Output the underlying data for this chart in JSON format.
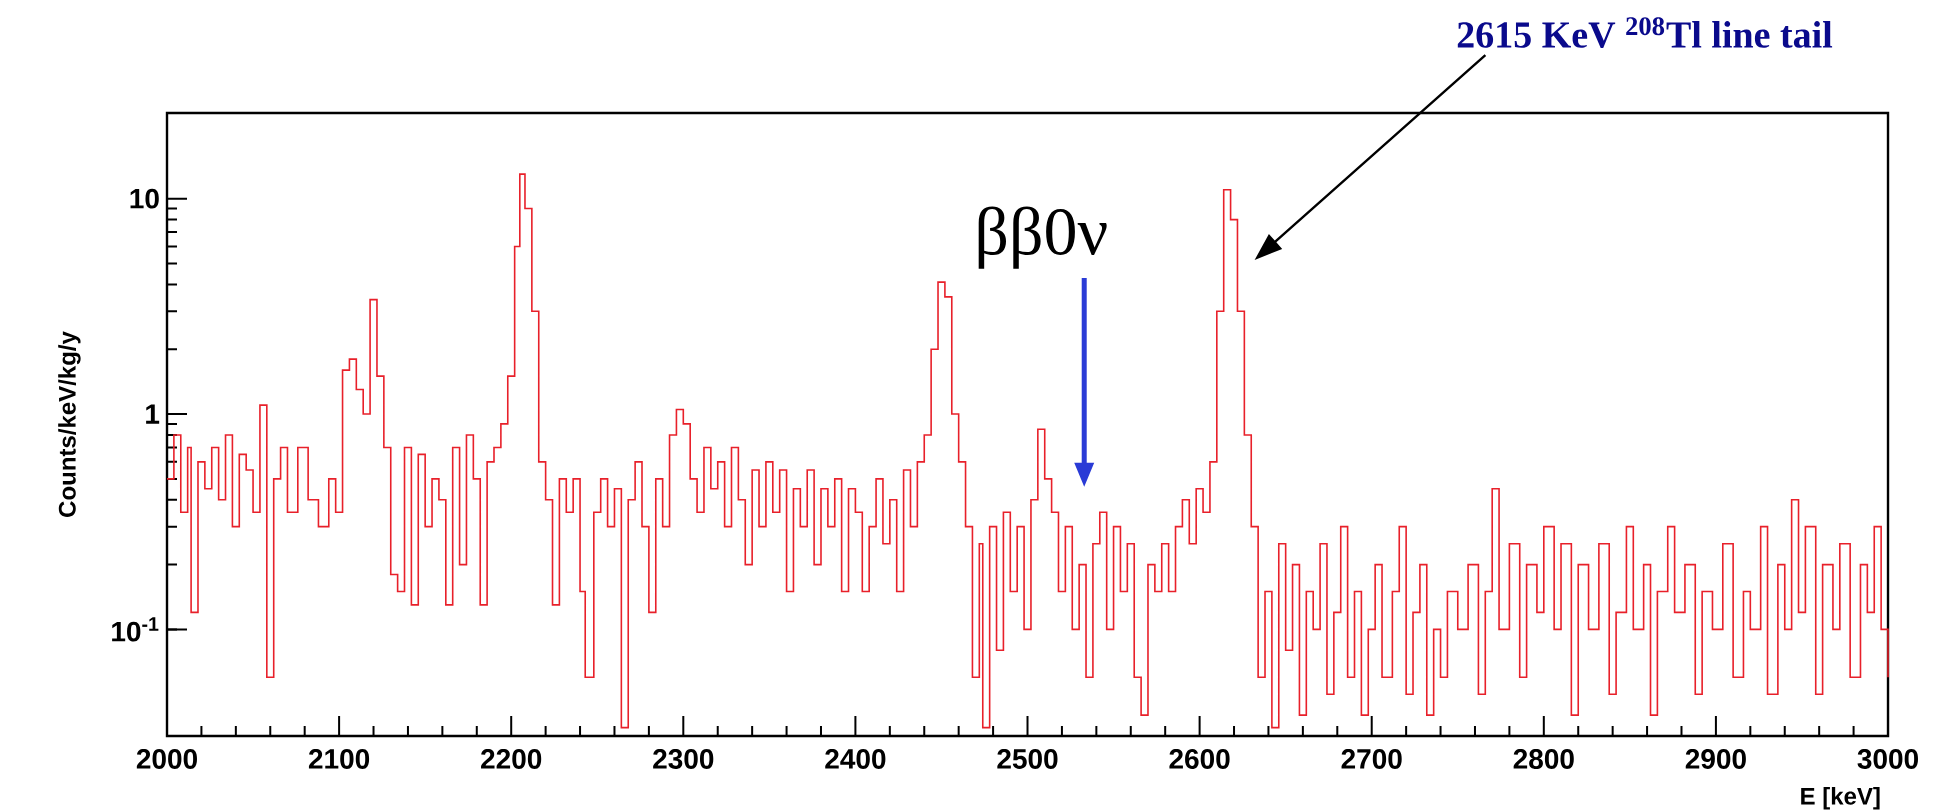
{
  "chart_data": {
    "type": "step",
    "xlabel": "E [keV]",
    "ylabel": "Counts/keV/kg/y",
    "log": true,
    "color": "#e8202a",
    "xlim": [
      2000,
      3000
    ],
    "ylim": [
      0.032,
      25
    ],
    "xticks": [
      2000,
      2100,
      2200,
      2300,
      2400,
      2500,
      2600,
      2700,
      2800,
      2900,
      3000
    ],
    "yticks": [
      {
        "value": 0.1,
        "label": "10$^{-1}$"
      },
      1,
      10
    ],
    "annotations": [
      "ββ0ν",
      "2615 KeV $^{208}$Tl line tail"
    ],
    "x": [
      2000,
      2004,
      2008,
      2012,
      2014,
      2018,
      2022,
      2026,
      2030,
      2034,
      2038,
      2042,
      2046,
      2050,
      2054,
      2058,
      2062,
      2066,
      2070,
      2076,
      2082,
      2088,
      2094,
      2098,
      2102,
      2106,
      2110,
      2114,
      2118,
      2122,
      2126,
      2130,
      2134,
      2138,
      2142,
      2146,
      2150,
      2154,
      2158,
      2162,
      2166,
      2170,
      2174,
      2178,
      2182,
      2186,
      2190,
      2194,
      2198,
      2202,
      2205,
      2208,
      2212,
      2216,
      2220,
      2224,
      2228,
      2232,
      2236,
      2240,
      2243,
      2248,
      2252,
      2256,
      2260,
      2264,
      2268,
      2272,
      2276,
      2280,
      2284,
      2288,
      2292,
      2296,
      2300,
      2304,
      2308,
      2312,
      2316,
      2320,
      2324,
      2328,
      2332,
      2336,
      2340,
      2344,
      2348,
      2352,
      2356,
      2360,
      2364,
      2368,
      2372,
      2376,
      2380,
      2384,
      2388,
      2392,
      2396,
      2400,
      2404,
      2408,
      2412,
      2416,
      2420,
      2424,
      2428,
      2432,
      2436,
      2440,
      2444,
      2448,
      2452,
      2456,
      2460,
      2464,
      2468,
      2472,
      2474,
      2478,
      2482,
      2486,
      2490,
      2494,
      2498,
      2502,
      2506,
      2510,
      2514,
      2518,
      2522,
      2526,
      2530,
      2534,
      2538,
      2542,
      2546,
      2550,
      2554,
      2558,
      2562,
      2566,
      2570,
      2574,
      2578,
      2582,
      2586,
      2590,
      2594,
      2598,
      2602,
      2606,
      2610,
      2614,
      2618,
      2622,
      2626,
      2630,
      2634,
      2638,
      2642,
      2646,
      2650,
      2654,
      2658,
      2662,
      2666,
      2670,
      2674,
      2678,
      2682,
      2686,
      2690,
      2694,
      2698,
      2702,
      2706,
      2712,
      2716,
      2720,
      2724,
      2728,
      2732,
      2736,
      2740,
      2744,
      2750,
      2756,
      2762,
      2766,
      2770,
      2774,
      2780,
      2786,
      2790,
      2796,
      2800,
      2806,
      2810,
      2816,
      2820,
      2826,
      2832,
      2838,
      2842,
      2848,
      2852,
      2858,
      2862,
      2866,
      2872,
      2876,
      2882,
      2888,
      2892,
      2898,
      2904,
      2910,
      2916,
      2920,
      2926,
      2930,
      2936,
      2940,
      2944,
      2948,
      2952,
      2958,
      2962,
      2968,
      2972,
      2978,
      2984,
      2988,
      2992,
      2996,
      3000
    ],
    "values": [
      0.5,
      0.8,
      0.35,
      0.7,
      0.12,
      0.6,
      0.45,
      0.7,
      0.4,
      0.8,
      0.3,
      0.65,
      0.55,
      0.35,
      1.1,
      0.06,
      0.5,
      0.7,
      0.35,
      0.7,
      0.4,
      0.3,
      0.5,
      0.35,
      1.6,
      1.8,
      1.3,
      1.0,
      3.4,
      1.5,
      0.7,
      0.18,
      0.15,
      0.7,
      0.13,
      0.65,
      0.3,
      0.5,
      0.4,
      0.13,
      0.7,
      0.2,
      0.8,
      0.5,
      0.13,
      0.6,
      0.7,
      0.9,
      1.5,
      6,
      13,
      9,
      3,
      0.6,
      0.4,
      0.13,
      0.5,
      0.35,
      0.5,
      0.15,
      0.06,
      0.35,
      0.5,
      0.3,
      0.45,
      0.035,
      0.4,
      0.6,
      0.3,
      0.12,
      0.5,
      0.3,
      0.8,
      1.05,
      0.9,
      0.5,
      0.35,
      0.7,
      0.45,
      0.6,
      0.3,
      0.7,
      0.4,
      0.2,
      0.55,
      0.3,
      0.6,
      0.35,
      0.55,
      0.15,
      0.45,
      0.3,
      0.55,
      0.2,
      0.45,
      0.3,
      0.5,
      0.15,
      0.45,
      0.35,
      0.15,
      0.3,
      0.5,
      0.25,
      0.4,
      0.15,
      0.55,
      0.3,
      0.6,
      0.8,
      2.0,
      4.1,
      3.5,
      1.0,
      0.6,
      0.3,
      0.06,
      0.25,
      0.035,
      0.3,
      0.08,
      0.35,
      0.15,
      0.3,
      0.1,
      0.4,
      0.85,
      0.5,
      0.35,
      0.15,
      0.3,
      0.1,
      0.2,
      0.06,
      0.25,
      0.35,
      0.1,
      0.3,
      0.15,
      0.25,
      0.06,
      0.04,
      0.2,
      0.15,
      0.25,
      0.15,
      0.3,
      0.4,
      0.25,
      0.45,
      0.35,
      0.6,
      3,
      11,
      8,
      3,
      0.8,
      0.3,
      0.06,
      0.15,
      0.035,
      0.25,
      0.08,
      0.2,
      0.04,
      0.15,
      0.1,
      0.25,
      0.05,
      0.12,
      0.3,
      0.06,
      0.15,
      0.04,
      0.1,
      0.2,
      0.06,
      0.15,
      0.3,
      0.05,
      0.12,
      0.2,
      0.04,
      0.1,
      0.06,
      0.15,
      0.1,
      0.2,
      0.05,
      0.15,
      0.45,
      0.1,
      0.25,
      0.06,
      0.2,
      0.12,
      0.3,
      0.1,
      0.25,
      0.04,
      0.2,
      0.1,
      0.25,
      0.05,
      0.12,
      0.3,
      0.1,
      0.2,
      0.04,
      0.15,
      0.3,
      0.12,
      0.2,
      0.05,
      0.15,
      0.1,
      0.25,
      0.06,
      0.15,
      0.1,
      0.3,
      0.05,
      0.2,
      0.1,
      0.4,
      0.12,
      0.3,
      0.05,
      0.2,
      0.1,
      0.25,
      0.06,
      0.2,
      0.12,
      0.3,
      0.1,
      0.06
    ]
  }
}
